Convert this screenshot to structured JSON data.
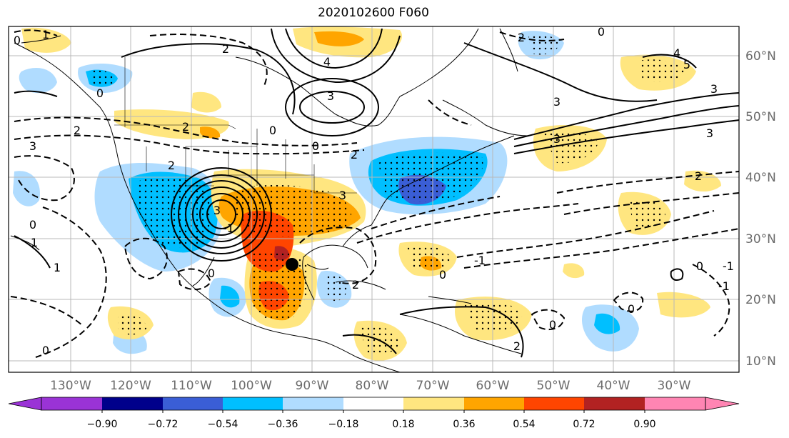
{
  "title": "2020102600 F060",
  "lat_labels": [
    "60°N",
    "50°N",
    "40°N",
    "30°N",
    "20°N",
    "10°N"
  ],
  "lon_labels": [
    "130°W",
    "120°W",
    "110°W",
    "100°W",
    "90°W",
    "80°W",
    "70°W",
    "60°W",
    "50°W",
    "40°W",
    "30°W"
  ],
  "colorbar": {
    "ticks": [
      "−0.90",
      "−0.72",
      "−0.54",
      "−0.36",
      "−0.18",
      "0.18",
      "0.36",
      "0.54",
      "0.72",
      "0.90"
    ],
    "colors": [
      "#9a33d6",
      "#00008b",
      "#3a5ed6",
      "#00bfff",
      "#b0dcff",
      "#ffffff",
      "#ffe680",
      "#ffa500",
      "#ff4500",
      "#b22222",
      "#ff85b3"
    ]
  },
  "contour_labels": [
    "0",
    "1",
    "2",
    "2",
    "3",
    "4",
    "3",
    "2",
    "3",
    "2",
    "0",
    "3",
    "2",
    "-1",
    "0",
    "3",
    "0",
    "2",
    "0",
    "-1",
    "0",
    "0",
    "0",
    "1",
    "1",
    "2",
    "3",
    "0",
    "2",
    "3",
    "4",
    "5",
    "0",
    "0",
    "-1",
    "-1",
    "3",
    "2",
    "0"
  ],
  "marker": "storm-center-dot"
}
